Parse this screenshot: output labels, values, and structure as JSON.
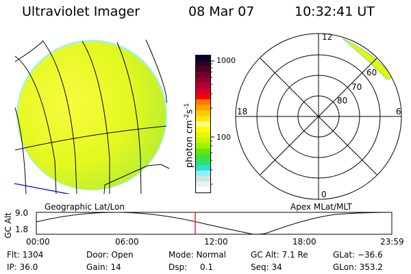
{
  "header": {
    "instrument": "Ultraviolet Imager",
    "date": "08 Mar 07",
    "time": "10:32:41 UT"
  },
  "geo_panel": {
    "label": "Geographic Lat/Lon"
  },
  "colorbar": {
    "unit_label": "photon cm",
    "unit_exp1": "-2",
    "unit_s": "s",
    "unit_exp2": "-1",
    "ticks": [
      "1000",
      "100"
    ],
    "colors": [
      "#000030",
      "#30001e",
      "#500024",
      "#70002c",
      "#900030",
      "#b00030",
      "#d00030",
      "#ff0000",
      "#ff7800",
      "#ffa000",
      "#ffc800",
      "#ffe600",
      "#ffff80",
      "#ffff00",
      "#e6f800",
      "#c8f400",
      "#a0f000",
      "#60ec00",
      "#40e040",
      "#30e068",
      "#28e0d8",
      "#90f0f8",
      "#d0e4e4",
      "#e8f4f0",
      "#ffffff"
    ]
  },
  "polar_panel": {
    "label": "Apex MLat/MLT",
    "mlt_labels": {
      "top": "12",
      "left": "18",
      "right": "6",
      "bottom": "0"
    },
    "lat_labels": [
      "80",
      "70",
      "60"
    ]
  },
  "altitude_plot": {
    "ylabel": "GC Alt",
    "yticks": [
      "9.0",
      "1.8"
    ],
    "xticks": [
      "00:00",
      "06:00",
      "12:00",
      "18:00",
      "23:59"
    ],
    "current_time_marker_color": "#ff0000"
  },
  "status": {
    "flt": "Flt: 1304",
    "ip": "IP: 36.0",
    "door": "Door: Open",
    "gain": "Gain: 14",
    "mode": "Mode: Normal",
    "dsp_label": "Dsp:",
    "dsp_value": "0.1",
    "gc_alt": "GC Alt: 7.1 Re",
    "seq": "Seq: 34",
    "glat": "GLat: −36.6",
    "glon": "GLon: 353.2"
  }
}
